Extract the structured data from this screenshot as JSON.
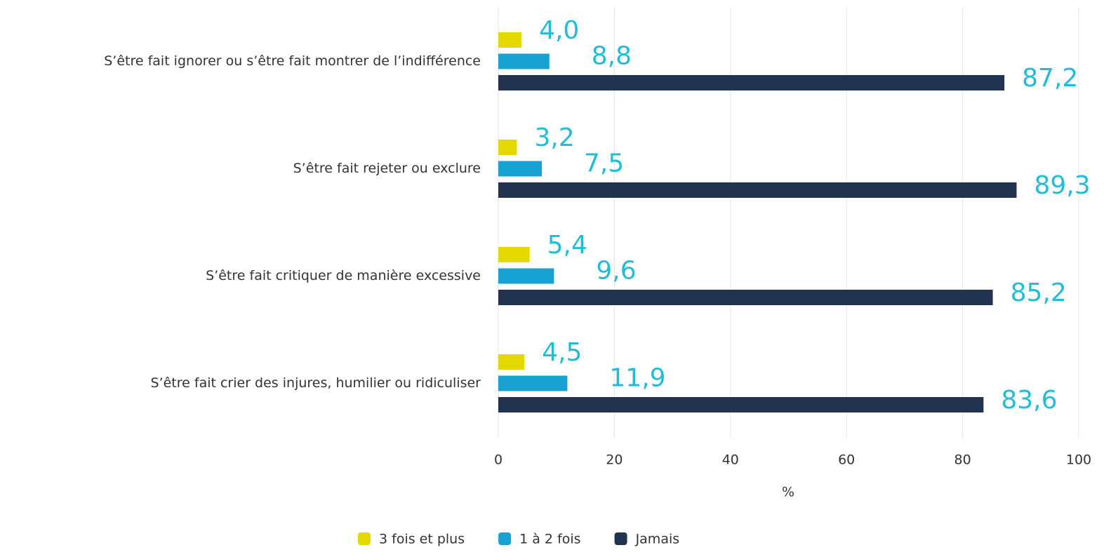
{
  "chart_data": {
    "type": "bar",
    "orientation": "horizontal",
    "categories": [
      "S’être fait ignorer ou s’être fait montrer de l’indifférence",
      "S’être fait rejeter ou exclure",
      "S’être fait critiquer de manière excessive",
      "S’être fait crier des injures, humilier ou ridiculiser"
    ],
    "series": [
      {
        "name": "3 fois et plus",
        "color": "#e3d800",
        "values": [
          4.0,
          3.2,
          5.4,
          4.5
        ],
        "value_labels": [
          "4,0",
          "3,2",
          "5,4",
          "4,5"
        ]
      },
      {
        "name": "1 à 2 fois",
        "color": "#17a2d2",
        "values": [
          8.8,
          7.5,
          9.6,
          11.9
        ],
        "value_labels": [
          "8,8",
          "7,5",
          "9,6",
          "11,9"
        ]
      },
      {
        "name": "Jamais",
        "color": "#22334f",
        "values": [
          87.2,
          89.3,
          85.2,
          83.6
        ],
        "value_labels": [
          "87,2",
          "89,3",
          "85,2",
          "83,6"
        ]
      }
    ],
    "xlabel": "%",
    "xlim": [
      0,
      100
    ],
    "xticks": [
      0,
      20,
      40,
      60,
      80,
      100
    ],
    "grid": true,
    "legend": "bottom"
  }
}
